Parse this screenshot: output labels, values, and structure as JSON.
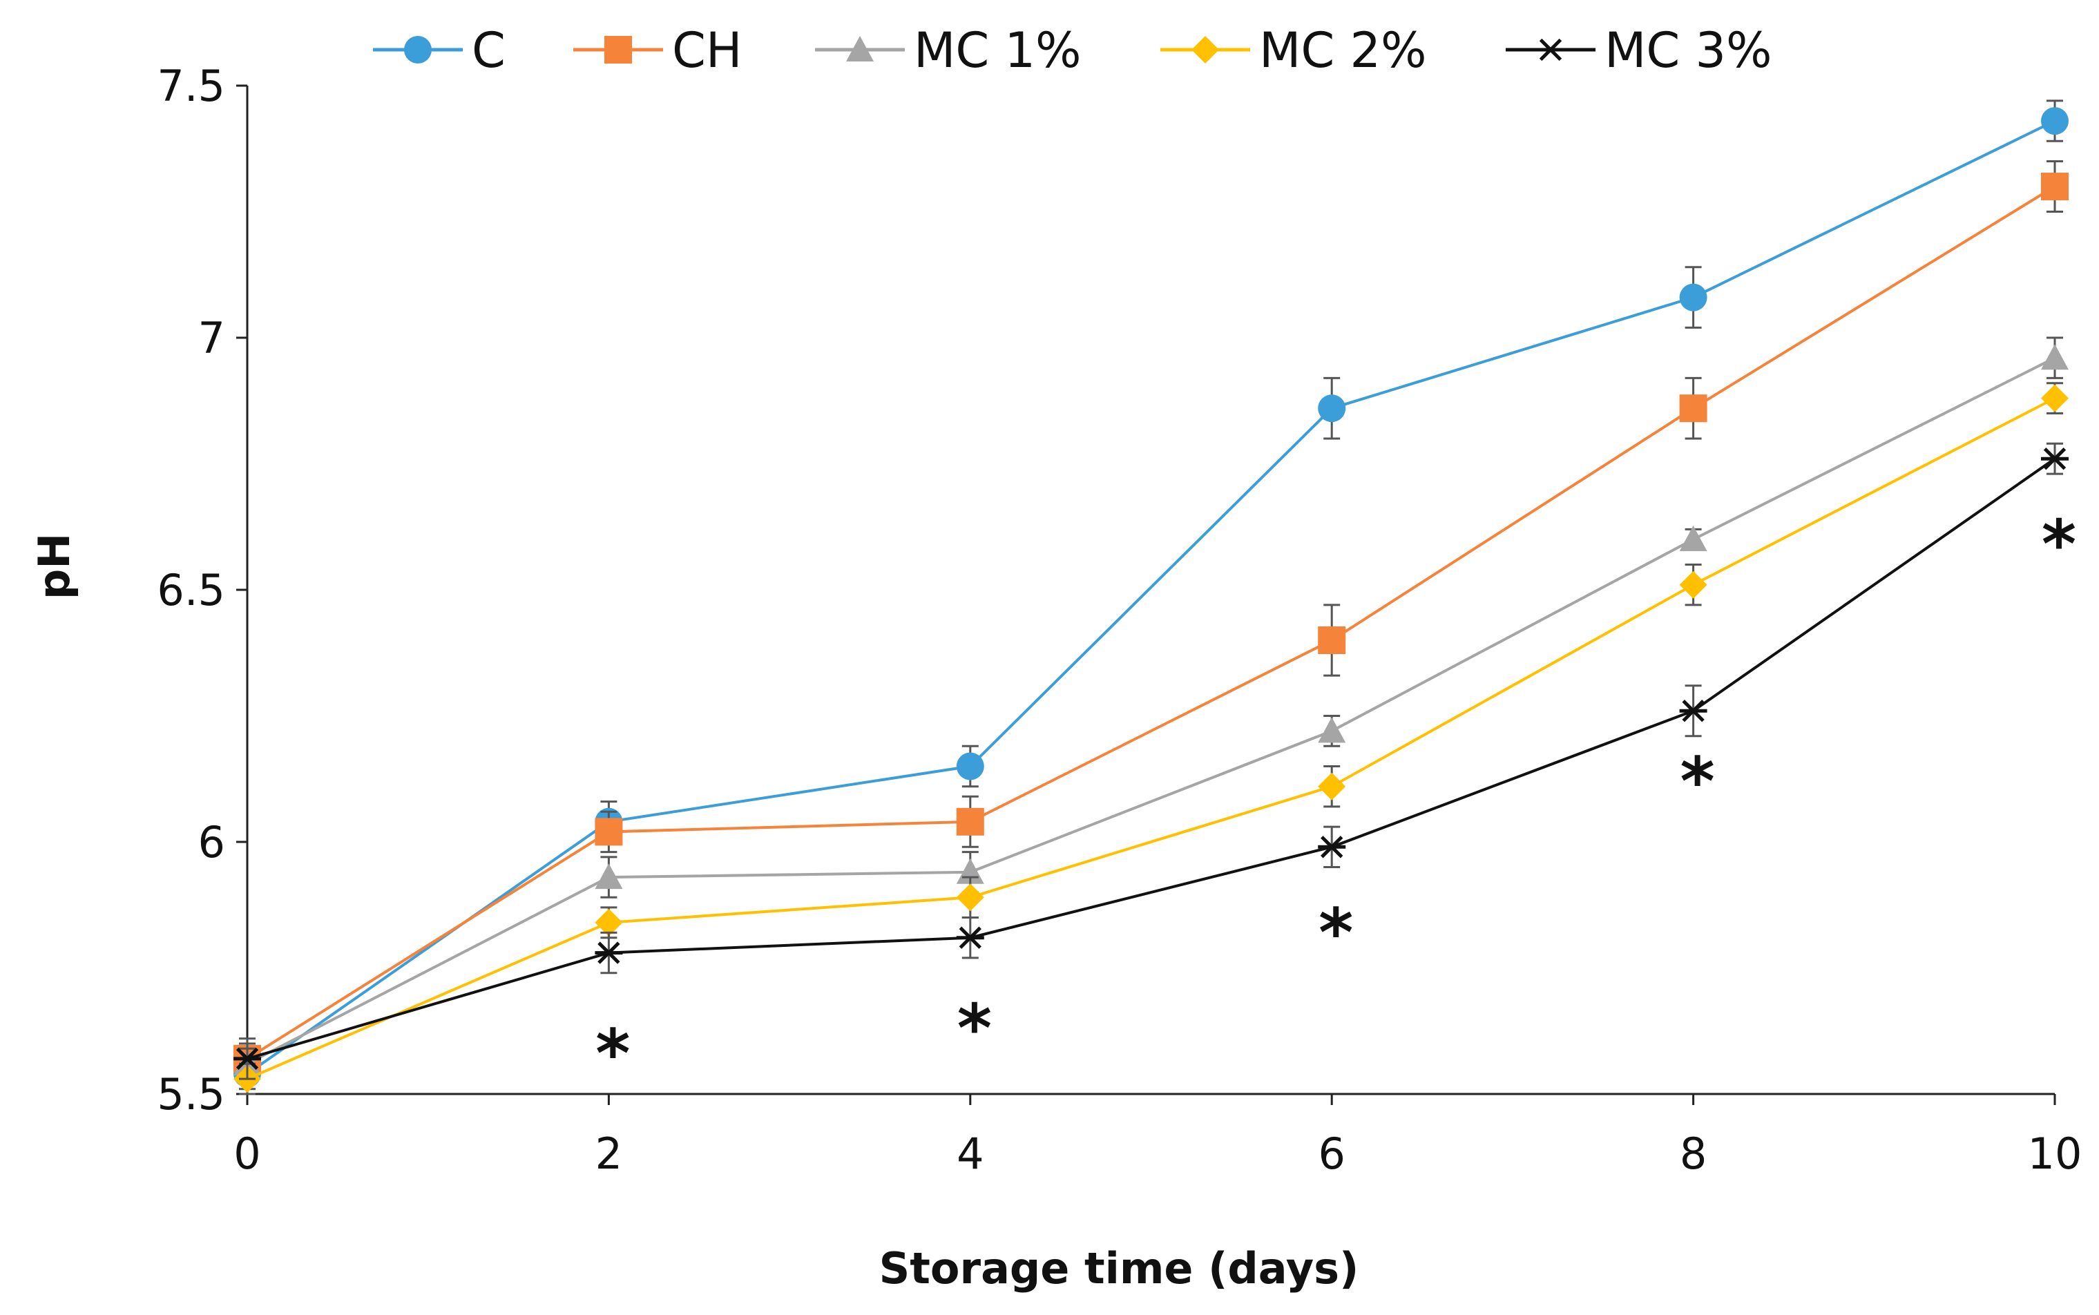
{
  "chart_data": {
    "type": "line",
    "title": "",
    "xlabel": "Storage time (days)",
    "ylabel": "pH",
    "x": [
      0,
      2,
      4,
      6,
      8,
      10
    ],
    "x_ticks": [
      "0",
      "2",
      "4",
      "6",
      "8",
      "10"
    ],
    "xlim": [
      0,
      10
    ],
    "ylim": [
      5.5,
      7.5
    ],
    "y_ticks": [
      "5.5",
      "6",
      "6.5",
      "7",
      "7.5"
    ],
    "grid": false,
    "legend_position": "top",
    "series": [
      {
        "name": "C",
        "color": "#3C9ED9",
        "marker": "circle",
        "values": [
          5.54,
          6.04,
          6.15,
          6.86,
          7.08,
          7.43
        ],
        "errors": [
          0.03,
          0.04,
          0.04,
          0.06,
          0.06,
          0.04
        ]
      },
      {
        "name": "CH",
        "color": "#F5843A",
        "marker": "square",
        "values": [
          5.57,
          6.02,
          6.04,
          6.4,
          6.86,
          7.3
        ],
        "errors": [
          0.03,
          0.04,
          0.05,
          0.07,
          0.06,
          0.05
        ]
      },
      {
        "name": "MC 1%",
        "color": "#A5A5A5",
        "marker": "triangle",
        "values": [
          5.56,
          5.93,
          5.94,
          6.22,
          6.6,
          6.96
        ],
        "errors": [
          0.03,
          0.04,
          0.04,
          0.03,
          0.02,
          0.04
        ]
      },
      {
        "name": "MC 2%",
        "color": "#FFC000",
        "marker": "diamond",
        "values": [
          5.53,
          5.84,
          5.89,
          6.11,
          6.51,
          6.88
        ],
        "errors": [
          0.03,
          0.03,
          0.04,
          0.04,
          0.04,
          0.03
        ]
      },
      {
        "name": "MC 3%",
        "color": "#111111",
        "marker": "asterisk",
        "values": [
          5.57,
          5.78,
          5.81,
          5.99,
          6.26,
          6.76
        ],
        "errors": [
          0.04,
          0.04,
          0.04,
          0.04,
          0.05,
          0.03
        ]
      }
    ],
    "annotations": [
      {
        "text": "*",
        "x": 2,
        "y": 5.6
      },
      {
        "text": "*",
        "x": 4,
        "y": 5.65
      },
      {
        "text": "*",
        "x": 6,
        "y": 5.84
      },
      {
        "text": "*",
        "x": 8,
        "y": 6.14
      },
      {
        "text": "*",
        "x": 10,
        "y": 6.61
      }
    ]
  }
}
